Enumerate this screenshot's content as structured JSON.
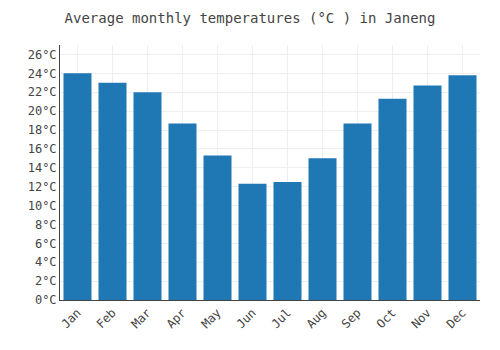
{
  "chart_data": {
    "type": "bar",
    "title": "Average monthly temperatures (°C ) in Janeng",
    "categories": [
      "Jan",
      "Feb",
      "Mar",
      "Apr",
      "May",
      "Jun",
      "Jul",
      "Aug",
      "Sep",
      "Oct",
      "Nov",
      "Dec"
    ],
    "values": [
      24.0,
      23.0,
      22.0,
      18.7,
      15.3,
      12.3,
      12.5,
      15.0,
      18.7,
      21.3,
      22.7,
      23.8
    ],
    "ylim": [
      0,
      27
    ],
    "yticks": [
      {
        "value": 0,
        "label": "0°C"
      },
      {
        "value": 2,
        "label": "2°C"
      },
      {
        "value": 4,
        "label": "4°C"
      },
      {
        "value": 6,
        "label": "6°C"
      },
      {
        "value": 8,
        "label": "8°C"
      },
      {
        "value": 10,
        "label": "10°C"
      },
      {
        "value": 12,
        "label": "12°C"
      },
      {
        "value": 14,
        "label": "14°C"
      },
      {
        "value": 16,
        "label": "16°C"
      },
      {
        "value": 18,
        "label": "18°C"
      },
      {
        "value": 20,
        "label": "20°C"
      },
      {
        "value": 22,
        "label": "22°C"
      },
      {
        "value": 24,
        "label": "24°C"
      },
      {
        "value": 26,
        "label": "26°C"
      }
    ],
    "grid": true
  }
}
